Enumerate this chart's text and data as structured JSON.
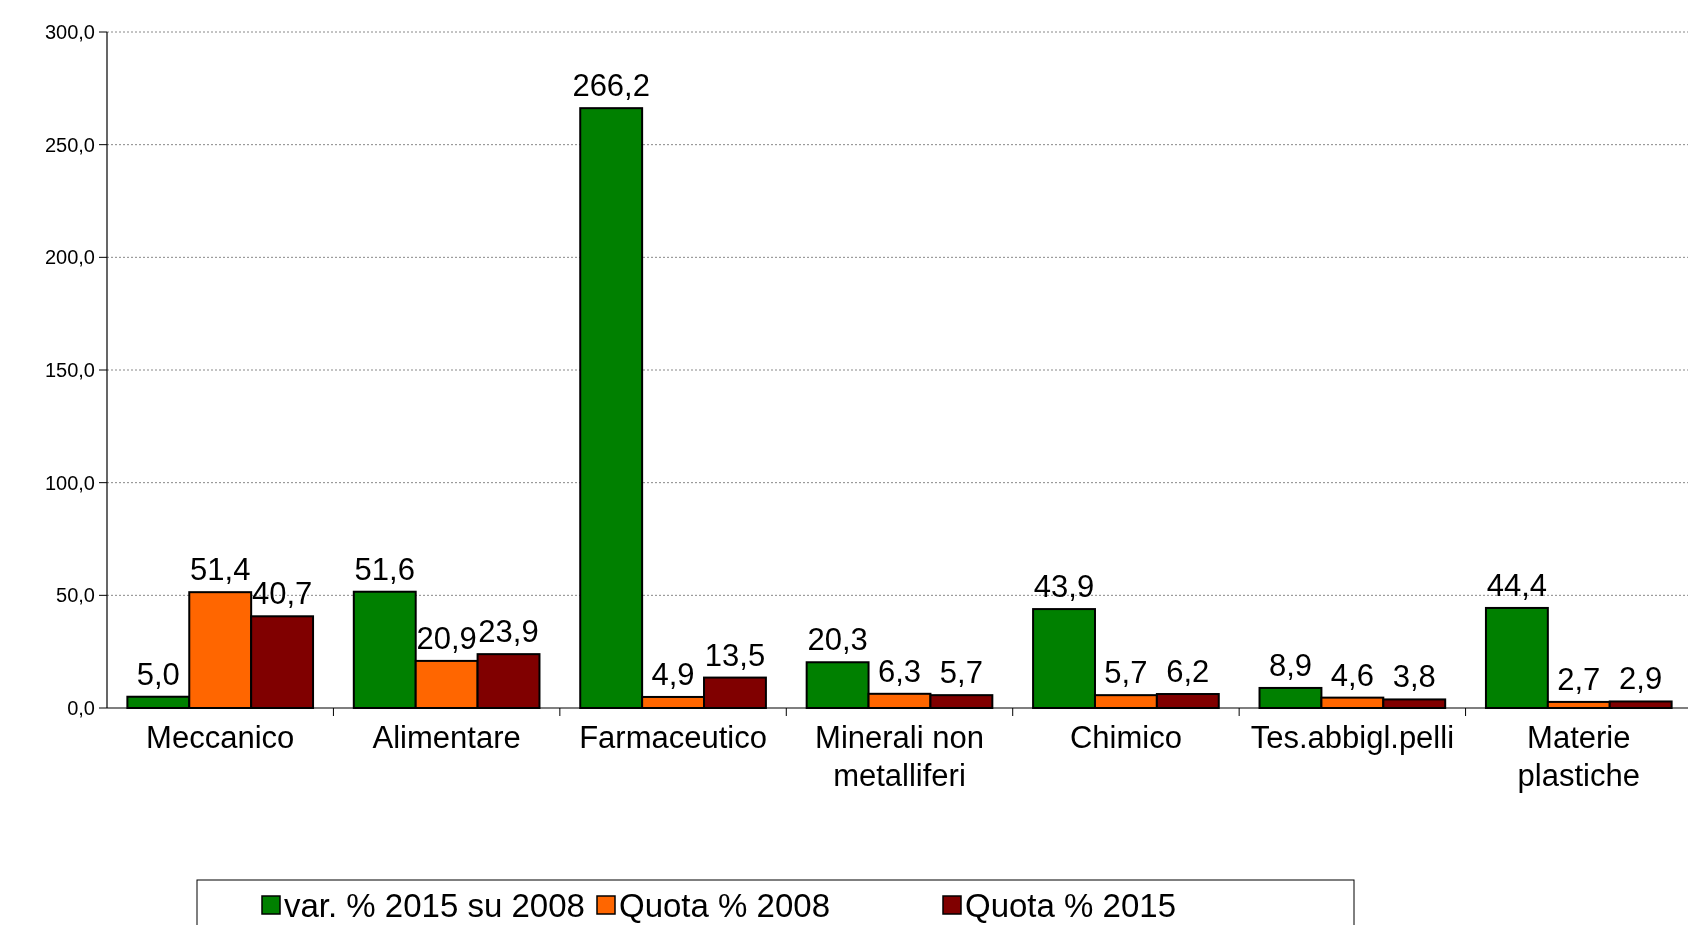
{
  "chart_data": {
    "type": "bar",
    "categories": [
      "Meccanico",
      "Alimentare",
      "Farmaceutico",
      "Minerali non metalliferi",
      "Chimico",
      "Tes.abbigl.pelli",
      "Materie plastiche"
    ],
    "series": [
      {
        "name": "var. % 2015 su 2008",
        "color": "#008000",
        "values": [
          5.0,
          51.6,
          266.2,
          20.3,
          43.9,
          8.9,
          44.4
        ],
        "value_labels": [
          "5,0",
          "51,6",
          "266,2",
          "20,3",
          "43,9",
          "8,9",
          "44,4"
        ]
      },
      {
        "name": "Quota % 2008",
        "color": "#ff6600",
        "values": [
          51.4,
          20.9,
          4.9,
          6.3,
          5.7,
          4.6,
          2.7
        ],
        "value_labels": [
          "51,4",
          "20,9",
          "4,9",
          "6,3",
          "5,7",
          "4,6",
          "2,7"
        ]
      },
      {
        "name": "Quota % 2015",
        "color": "#800000",
        "values": [
          40.7,
          23.9,
          13.5,
          5.7,
          6.2,
          3.8,
          2.9
        ],
        "value_labels": [
          "40,7",
          "23,9",
          "13,5",
          "5,7",
          "6,2",
          "3,8",
          "2,9"
        ]
      }
    ],
    "ylim": [
      0,
      300
    ],
    "yticks": [
      {
        "value": 0,
        "label": "0,0"
      },
      {
        "value": 50,
        "label": "50,0"
      },
      {
        "value": 100,
        "label": "100,0"
      },
      {
        "value": 150,
        "label": "150,0"
      },
      {
        "value": 200,
        "label": "200,0"
      },
      {
        "value": 250,
        "label": "250,0"
      },
      {
        "value": 300,
        "label": "300,0"
      }
    ],
    "grid": "y",
    "legend": "bottom"
  }
}
